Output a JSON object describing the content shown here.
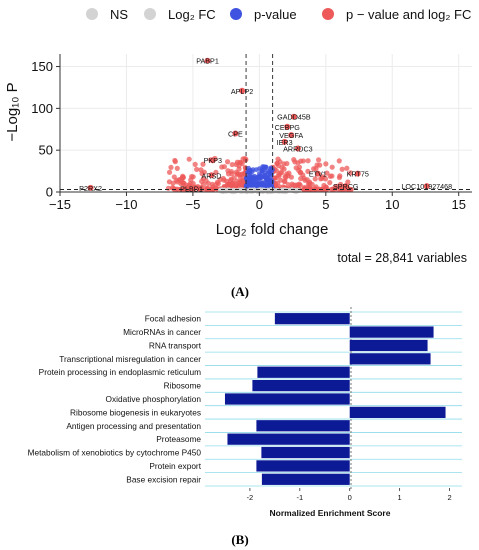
{
  "chart_data": [
    {
      "type": "scatter",
      "panel_label": "(A)",
      "legend": {
        "placement": "top",
        "items": [
          {
            "label": "NS",
            "color": "#d3d3d3"
          },
          {
            "label": "Log₂ FC",
            "color": "#d3d3d3"
          },
          {
            "label": "p-value",
            "color": "#3f52e0"
          },
          {
            "label": "p − value and log₂ FC",
            "color": "#ee5a5a"
          }
        ]
      },
      "ylabel": "−Log₁₀ P",
      "xlabel": "Log₂ fold change",
      "footer": "total = 28,841 variables",
      "xlim": [
        -15,
        16
      ],
      "ylim": [
        0,
        165
      ],
      "xticks": [
        -15,
        -10,
        -5,
        0,
        5,
        10,
        15
      ],
      "yticks": [
        0,
        50,
        100,
        150
      ],
      "xtick_labels": [
        "−15",
        "−10",
        "−5",
        "0",
        "5",
        "10",
        "15"
      ],
      "ytick_labels": [
        "0",
        "50",
        "100",
        "150"
      ],
      "thresholds": {
        "log2fc": [
          -1,
          1
        ],
        "neg_log10_p": 3
      },
      "labeled_points": [
        {
          "label": "PABP1",
          "x": -3.9,
          "y": 157
        },
        {
          "label": "APLP2",
          "x": -1.3,
          "y": 121
        },
        {
          "label": "GADD45B",
          "x": 2.6,
          "y": 90
        },
        {
          "label": "CEBPG",
          "x": 2.1,
          "y": 78
        },
        {
          "label": "VEGFA",
          "x": 2.4,
          "y": 68
        },
        {
          "label": "CPE",
          "x": -1.8,
          "y": 70
        },
        {
          "label": "IER3",
          "x": 1.9,
          "y": 60
        },
        {
          "label": "ARRDC3",
          "x": 2.9,
          "y": 52
        },
        {
          "label": "PKP3",
          "x": -3.5,
          "y": 38
        },
        {
          "label": "ARSD",
          "x": -3.6,
          "y": 20
        },
        {
          "label": "ETV1",
          "x": 4.4,
          "y": 22
        },
        {
          "label": "KRT75",
          "x": 7.4,
          "y": 22
        },
        {
          "label": "P2RX2",
          "x": -12.7,
          "y": 5
        },
        {
          "label": "PLBD1",
          "x": -5.1,
          "y": 4
        },
        {
          "label": "LOC101927468",
          "x": 12.6,
          "y": 7
        },
        {
          "label": "SPRCG",
          "x": 6.5,
          "y": 7
        }
      ]
    },
    {
      "type": "bar",
      "panel_label": "(B)",
      "orientation": "horizontal",
      "xlabel": "Normalized Enrichment Score",
      "xlim": [
        -2.9,
        2.25
      ],
      "xticks": [
        -2,
        -1,
        0,
        1,
        2
      ],
      "xtick_labels": [
        "-2",
        "-1",
        "0",
        "1",
        "2"
      ],
      "color": "#0d1a96",
      "categories": [
        "Focal adhesion",
        "MicroRNAs in cancer",
        "RNA transport",
        "Transcriptional misregulation in cancer",
        "Protein processing in endoplasmic reticulum",
        "Ribosome",
        "Oxidative phosphorylation",
        "Ribosome biogenesis in eukaryotes",
        "Antigen processing and presentation",
        "Proteasome",
        "Metabolism of xenobiotics by cytochrome P450",
        "Protein export",
        "Base excision repair"
      ],
      "values": [
        -1.5,
        1.68,
        1.56,
        1.62,
        -1.85,
        -1.95,
        -2.5,
        1.92,
        -1.87,
        -2.45,
        -1.77,
        -1.87,
        -1.76
      ]
    }
  ]
}
